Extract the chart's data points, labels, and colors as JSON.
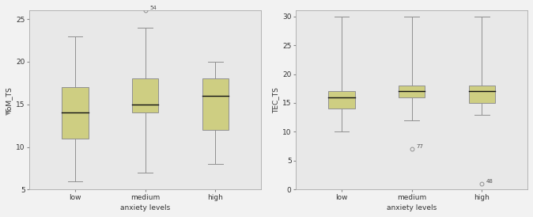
{
  "plot1": {
    "ylabel": "ToM_TS",
    "xlabel": "anxiety levels",
    "ylim": [
      5,
      26
    ],
    "yticks": [
      5,
      10,
      15,
      20,
      25
    ],
    "categories": [
      "low",
      "medium",
      "high"
    ],
    "boxes": [
      {
        "q1": 11,
        "median": 14,
        "q3": 17,
        "whislo": 6,
        "whishi": 23,
        "fliers": []
      },
      {
        "q1": 14,
        "median": 15,
        "q3": 18,
        "whislo": 7,
        "whishi": 24,
        "fliers": [
          26
        ],
        "flier_labels": [
          "54"
        ]
      },
      {
        "q1": 12,
        "median": 16,
        "q3": 18,
        "whislo": 8,
        "whishi": 20,
        "fliers": []
      }
    ]
  },
  "plot2": {
    "ylabel": "TEC_TS",
    "xlabel": "anxiety levels",
    "ylim": [
      0,
      31
    ],
    "yticks": [
      0,
      5,
      10,
      15,
      20,
      25,
      30
    ],
    "categories": [
      "low",
      "medium",
      "high"
    ],
    "boxes": [
      {
        "q1": 14,
        "median": 16,
        "q3": 17,
        "whislo": 10,
        "whishi": 30,
        "fliers": []
      },
      {
        "q1": 16,
        "median": 17,
        "q3": 18,
        "whislo": 12,
        "whishi": 30,
        "fliers": [
          7
        ],
        "flier_labels": [
          "77"
        ]
      },
      {
        "q1": 15,
        "median": 17,
        "q3": 18,
        "whislo": 13,
        "whishi": 30,
        "fliers": [
          1
        ],
        "flier_labels": [
          "48"
        ]
      }
    ]
  },
  "box_facecolor": "#cece82",
  "box_edgecolor": "#909090",
  "median_color": "#111111",
  "whisker_color": "#909090",
  "flier_color": "#909090",
  "bg_color": "#e8e8e8",
  "fig_bg_color": "#f2f2f2",
  "spine_color": "#aaaaaa",
  "tick_color": "#888888",
  "label_color": "#333333"
}
